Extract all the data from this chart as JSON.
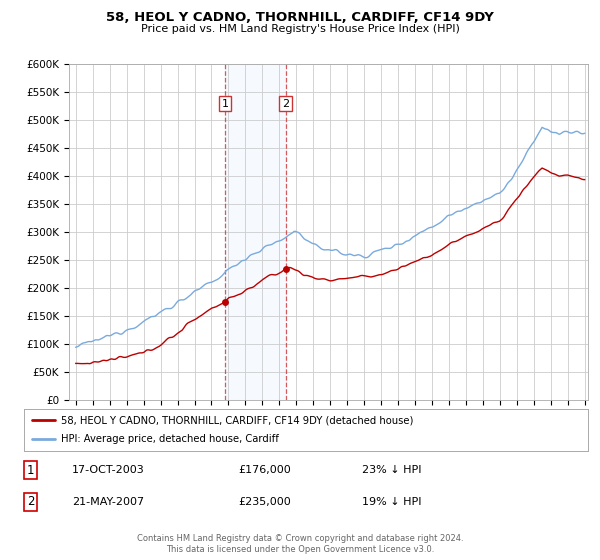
{
  "title": "58, HEOL Y CADNO, THORNHILL, CARDIFF, CF14 9DY",
  "subtitle": "Price paid vs. HM Land Registry's House Price Index (HPI)",
  "ylabel_ticks": [
    "£0",
    "£50K",
    "£100K",
    "£150K",
    "£200K",
    "£250K",
    "£300K",
    "£350K",
    "£400K",
    "£450K",
    "£500K",
    "£550K",
    "£600K"
  ],
  "ylim": [
    0,
    600000
  ],
  "ytick_vals": [
    0,
    50000,
    100000,
    150000,
    200000,
    250000,
    300000,
    350000,
    400000,
    450000,
    500000,
    550000,
    600000
  ],
  "legend_label_red": "58, HEOL Y CADNO, THORNHILL, CARDIFF, CF14 9DY (detached house)",
  "legend_label_blue": "HPI: Average price, detached house, Cardiff",
  "sale1_date": "17-OCT-2003",
  "sale1_price": 176000,
  "sale1_year": 2003.79,
  "sale1_pct": "23% ↓ HPI",
  "sale2_date": "21-MAY-2007",
  "sale2_price": 235000,
  "sale2_year": 2007.38,
  "sale2_pct": "19% ↓ HPI",
  "footer_line1": "Contains HM Land Registry data © Crown copyright and database right 2024.",
  "footer_line2": "This data is licensed under the Open Government Licence v3.0.",
  "red_color": "#bb0000",
  "blue_color": "#7aaadd",
  "shade_color": "#ddeeff",
  "background_color": "#ffffff",
  "grid_color": "#cccccc"
}
